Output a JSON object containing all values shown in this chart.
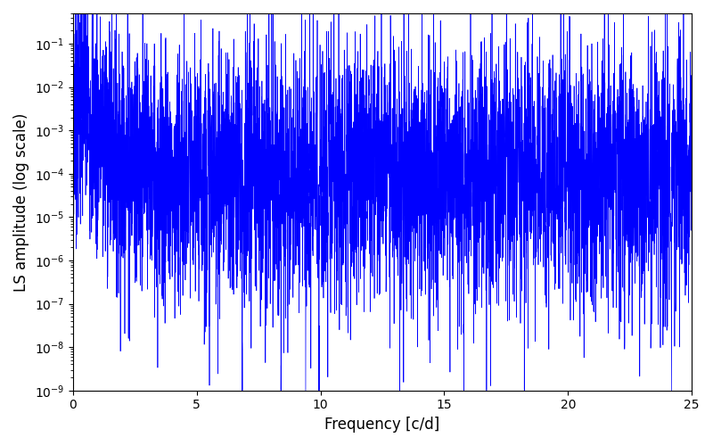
{
  "xlabel": "Frequency [c/d]",
  "ylabel": "LS amplitude (log scale)",
  "xlim": [
    0,
    25
  ],
  "ylim": [
    1e-09,
    0.5
  ],
  "line_color": "#0000ff",
  "background_color": "#ffffff",
  "figsize": [
    8.0,
    5.0
  ],
  "dpi": 100,
  "seed": 7,
  "n_points": 5000,
  "freq_max": 25.0
}
